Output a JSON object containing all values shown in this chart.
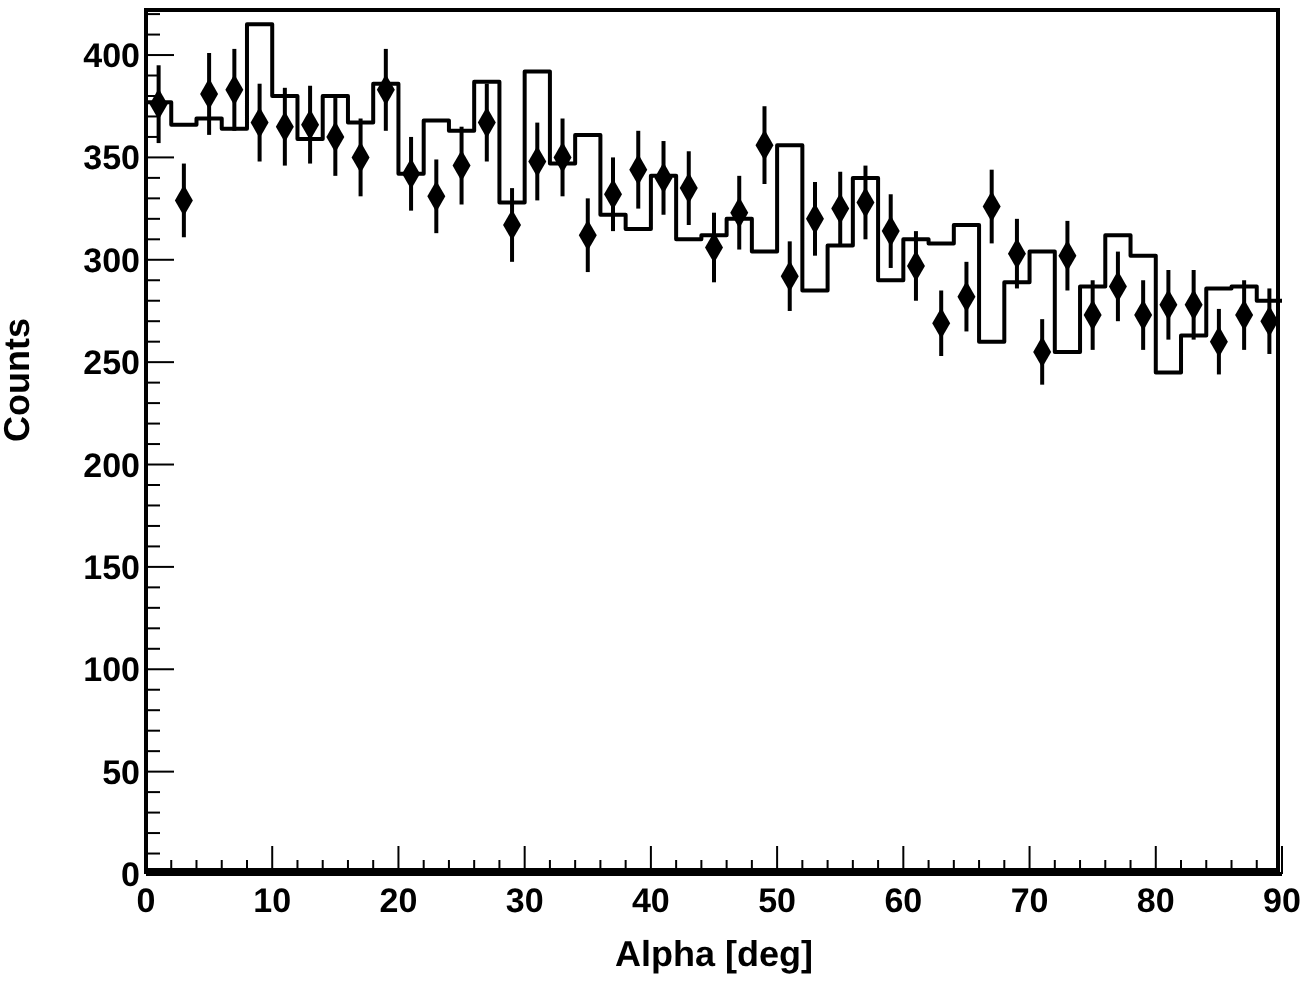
{
  "chart_data": {
    "type": "histogram",
    "xlabel": "Alpha [deg]",
    "ylabel": "Counts",
    "xlim": [
      0,
      90
    ],
    "ylim": [
      0,
      422
    ],
    "marker": "diamond",
    "xticks": [
      0,
      {
        "value": 2,
        "label": null
      },
      {
        "value": 4,
        "label": null
      },
      {
        "value": 6,
        "label": null
      },
      {
        "value": 8,
        "label": null
      },
      10,
      {
        "value": 12,
        "label": null
      },
      {
        "value": 14,
        "label": null
      },
      {
        "value": 16,
        "label": null
      },
      {
        "value": 18,
        "label": null
      },
      20,
      {
        "value": 22,
        "label": null
      },
      {
        "value": 24,
        "label": null
      },
      {
        "value": 26,
        "label": null
      },
      {
        "value": 28,
        "label": null
      },
      30,
      {
        "value": 32,
        "label": null
      },
      {
        "value": 34,
        "label": null
      },
      {
        "value": 36,
        "label": null
      },
      {
        "value": 38,
        "label": null
      },
      40,
      {
        "value": 42,
        "label": null
      },
      {
        "value": 44,
        "label": null
      },
      {
        "value": 46,
        "label": null
      },
      {
        "value": 48,
        "label": null
      },
      50,
      {
        "value": 52,
        "label": null
      },
      {
        "value": 54,
        "label": null
      },
      {
        "value": 56,
        "label": null
      },
      {
        "value": 58,
        "label": null
      },
      60,
      {
        "value": 62,
        "label": null
      },
      {
        "value": 64,
        "label": null
      },
      {
        "value": 66,
        "label": null
      },
      {
        "value": 68,
        "label": null
      },
      70,
      {
        "value": 72,
        "label": null
      },
      {
        "value": 74,
        "label": null
      },
      {
        "value": 76,
        "label": null
      },
      {
        "value": 78,
        "label": null
      },
      80,
      {
        "value": 82,
        "label": null
      },
      {
        "value": 84,
        "label": null
      },
      {
        "value": 86,
        "label": null
      },
      {
        "value": 88,
        "label": null
      },
      90
    ],
    "yticks": [
      0,
      {
        "value": 10,
        "label": null
      },
      {
        "value": 20,
        "label": null
      },
      {
        "value": 30,
        "label": null
      },
      {
        "value": 40,
        "label": null
      },
      50,
      {
        "value": 60,
        "label": null
      },
      {
        "value": 70,
        "label": null
      },
      {
        "value": 80,
        "label": null
      },
      {
        "value": 90,
        "label": null
      },
      100,
      {
        "value": 110,
        "label": null
      },
      {
        "value": 120,
        "label": null
      },
      {
        "value": 130,
        "label": null
      },
      {
        "value": 140,
        "label": null
      },
      150,
      {
        "value": 160,
        "label": null
      },
      {
        "value": 170,
        "label": null
      },
      {
        "value": 180,
        "label": null
      },
      {
        "value": 190,
        "label": null
      },
      200,
      {
        "value": 210,
        "label": null
      },
      {
        "value": 220,
        "label": null
      },
      {
        "value": 230,
        "label": null
      },
      {
        "value": 240,
        "label": null
      },
      250,
      {
        "value": 260,
        "label": null
      },
      {
        "value": 270,
        "label": null
      },
      {
        "value": 280,
        "label": null
      },
      {
        "value": 290,
        "label": null
      },
      300,
      {
        "value": 310,
        "label": null
      },
      {
        "value": 320,
        "label": null
      },
      {
        "value": 330,
        "label": null
      },
      {
        "value": 340,
        "label": null
      },
      350,
      {
        "value": 360,
        "label": null
      },
      {
        "value": 370,
        "label": null
      },
      {
        "value": 380,
        "label": null
      },
      {
        "value": 390,
        "label": null
      },
      400,
      {
        "value": 410,
        "label": null
      },
      {
        "value": 420,
        "label": null
      }
    ],
    "series": [
      {
        "type": "histogram",
        "color": "#000000",
        "bins": [
          0,
          2,
          4,
          6,
          8,
          10,
          12,
          14,
          16,
          18,
          20,
          22,
          24,
          26,
          28,
          30,
          32,
          34,
          36,
          38,
          40,
          42,
          44,
          46,
          48,
          50,
          52,
          54,
          56,
          58,
          60,
          62,
          64,
          66,
          68,
          70,
          72,
          74,
          76,
          78,
          80,
          82,
          84,
          86,
          88,
          90
        ],
        "values": [
          377,
          366,
          369,
          364,
          415,
          380,
          359,
          380,
          367,
          386,
          342,
          368,
          363,
          387,
          328,
          392,
          347,
          361,
          322,
          315,
          341,
          310,
          312,
          320,
          304,
          356,
          285,
          307,
          340,
          290,
          310,
          308,
          317,
          260,
          289,
          304,
          255,
          287,
          312,
          302,
          245,
          263,
          286,
          287,
          280
        ]
      },
      {
        "type": "scatter",
        "color": "#000000",
        "x": [
          1,
          3,
          5,
          7,
          9,
          11,
          13,
          15,
          17,
          19,
          21,
          23,
          25,
          27,
          29,
          31,
          33,
          35,
          37,
          39,
          41,
          43,
          45,
          47,
          49,
          51,
          53,
          55,
          57,
          59,
          61,
          63,
          65,
          67,
          69,
          71,
          73,
          75,
          77,
          79,
          81,
          83,
          85,
          87,
          89
        ],
        "values": [
          376,
          329,
          381,
          383,
          367,
          365,
          366,
          360,
          350,
          383,
          342,
          331,
          346,
          367,
          317,
          348,
          350,
          312,
          332,
          344,
          340,
          335,
          306,
          323,
          356,
          292,
          320,
          325,
          328,
          314,
          297,
          269,
          282,
          326,
          303,
          255,
          302,
          273,
          287,
          273,
          278,
          278,
          260,
          273,
          270
        ],
        "errors": [
          19,
          18,
          20,
          20,
          19,
          19,
          19,
          19,
          19,
          20,
          18,
          18,
          19,
          19,
          18,
          19,
          19,
          18,
          18,
          19,
          18,
          18,
          17,
          18,
          19,
          17,
          18,
          18,
          18,
          18,
          17,
          16,
          17,
          18,
          17,
          16,
          17,
          17,
          17,
          17,
          17,
          17,
          16,
          17,
          16
        ]
      }
    ]
  }
}
